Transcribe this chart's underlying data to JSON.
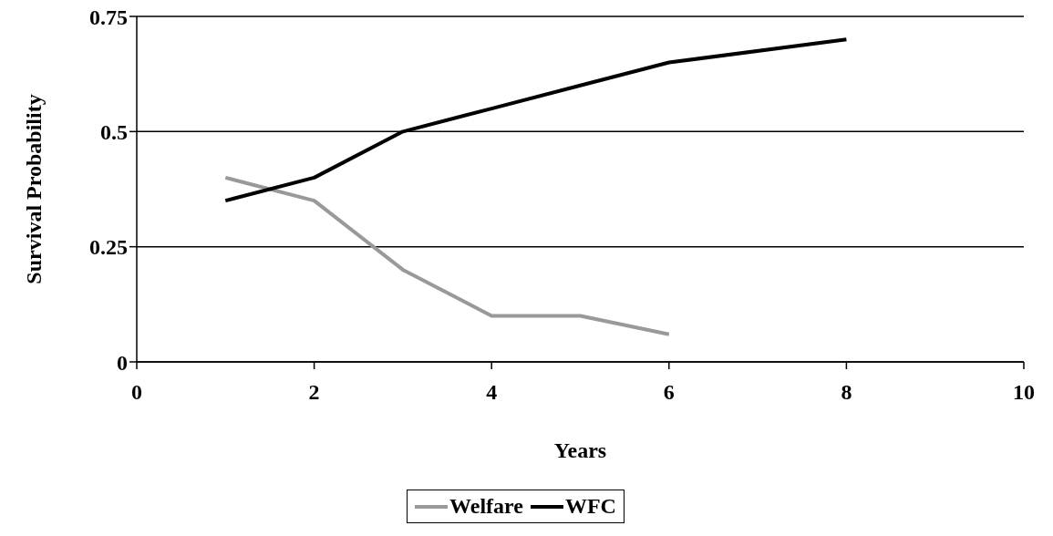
{
  "chart_data": {
    "type": "line",
    "xlabel": "Years",
    "ylabel": "Survival Probability",
    "xlim": [
      0,
      10
    ],
    "xticks": [
      0,
      2,
      4,
      6,
      8,
      10
    ],
    "ylim": [
      0,
      0.75
    ],
    "yticks": [
      0,
      0.25,
      0.5,
      0.75
    ],
    "grid": "y",
    "legend": "bottom",
    "marker": "none",
    "line_style": "solid",
    "series": [
      {
        "name": "Welfare",
        "color": "#999999",
        "x": [
          1,
          2,
          3,
          4,
          5,
          6
        ],
        "values": [
          0.4,
          0.35,
          0.2,
          0.1,
          0.1,
          0.06
        ]
      },
      {
        "name": "WFC",
        "color": "#000000",
        "x": [
          1,
          2,
          3,
          4,
          5,
          6,
          8
        ],
        "values": [
          0.35,
          0.4,
          0.5,
          0.55,
          0.6,
          0.65,
          0.7
        ]
      }
    ]
  }
}
